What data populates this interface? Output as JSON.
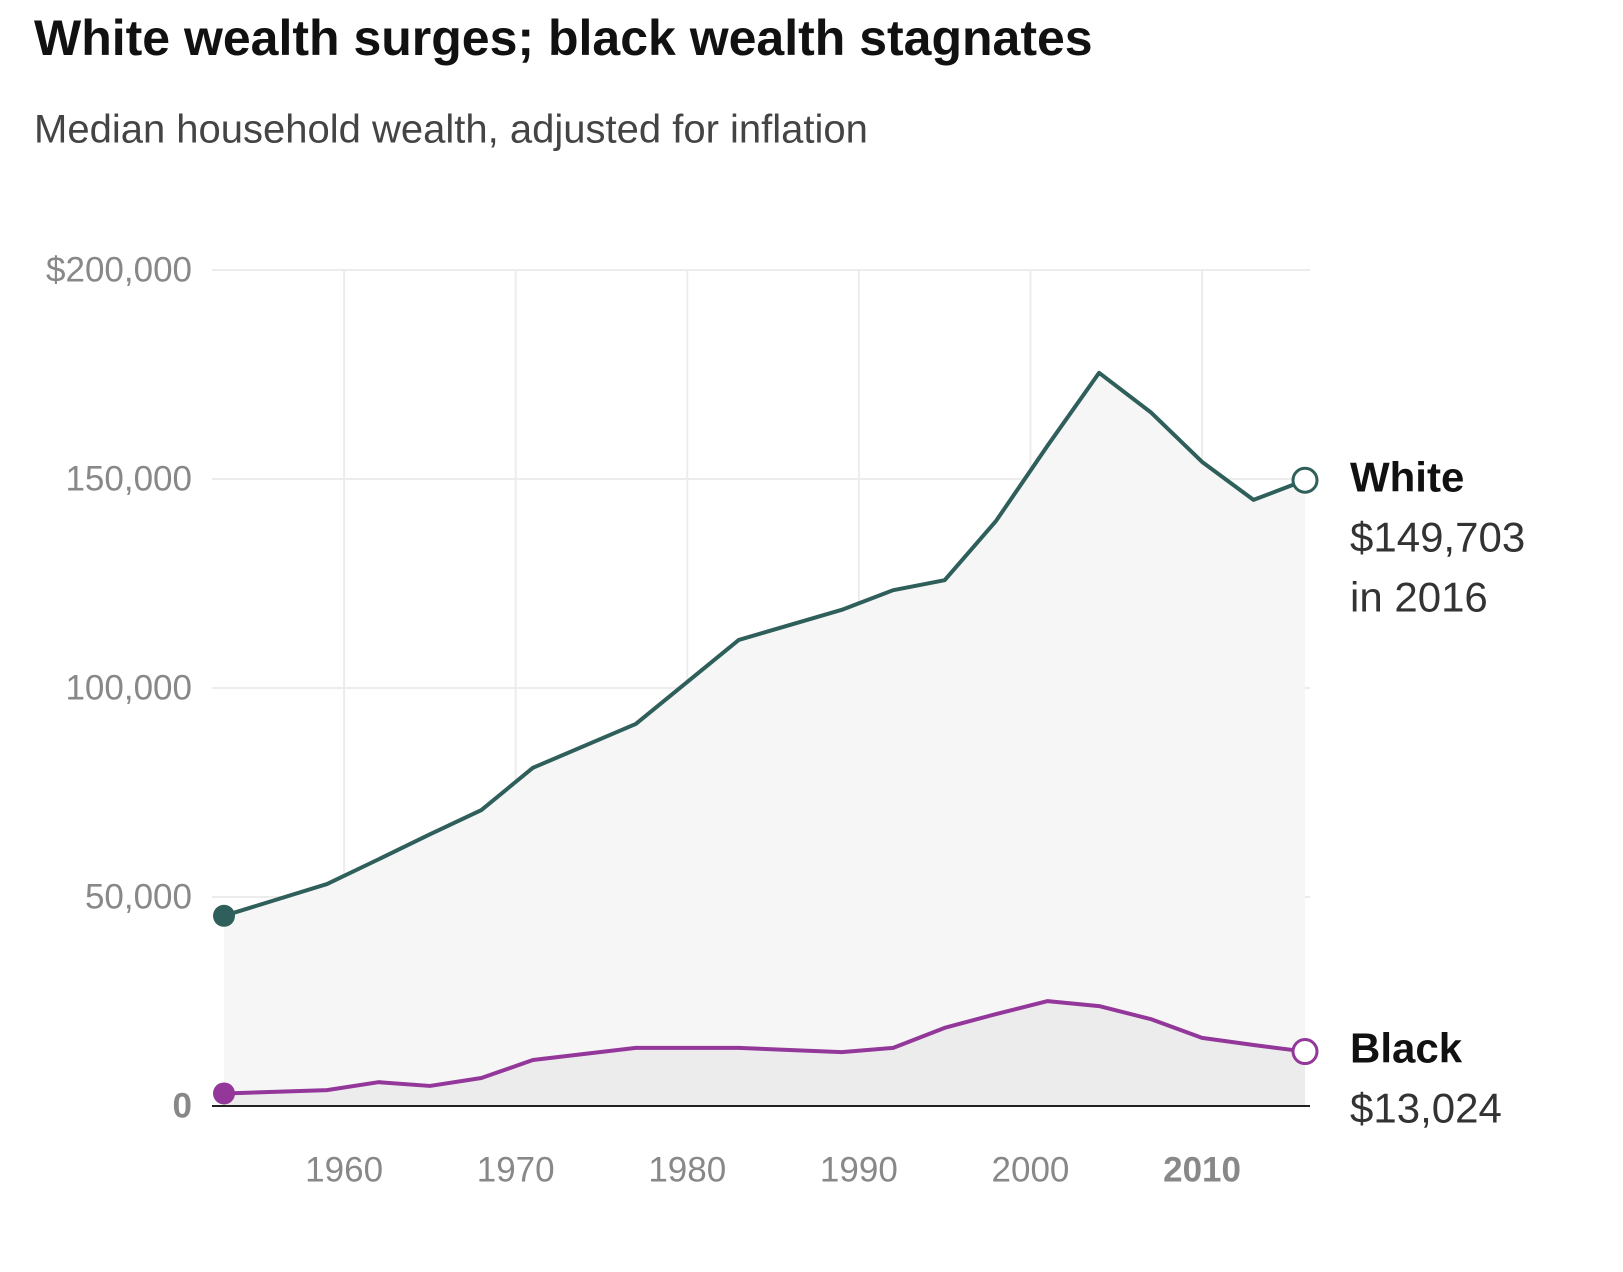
{
  "chart_data": {
    "type": "line",
    "title": "White wealth surges; black wealth stagnates",
    "subtitle": "Median household wealth, adjusted for inflation",
    "x": [
      1953,
      1959,
      1962,
      1965,
      1968,
      1971,
      1977,
      1983,
      1989,
      1992,
      1995,
      1998,
      2001,
      2004,
      2007,
      2010,
      2013,
      2016
    ],
    "series": [
      {
        "name": "White",
        "color": "#2f5f5a",
        "values": [
          45500,
          53100,
          59000,
          65000,
          70800,
          80900,
          91400,
          111500,
          118700,
          123400,
          125800,
          140000,
          158000,
          175400,
          166000,
          154100,
          145000,
          149703
        ],
        "end_label": [
          "$149,703",
          "in 2016"
        ]
      },
      {
        "name": "Black",
        "color": "#93379a",
        "values": [
          3000,
          3800,
          5700,
          4800,
          6700,
          11000,
          13900,
          13900,
          12900,
          13900,
          18700,
          22000,
          25100,
          23900,
          20800,
          16300,
          14600,
          13024
        ],
        "end_label": [
          "$13,024"
        ]
      }
    ],
    "xlim": [
      1953,
      2016
    ],
    "xticks": [
      1960,
      1970,
      1980,
      1990,
      2000,
      2010
    ],
    "ylim": [
      0,
      200000
    ],
    "yticks": [
      0,
      {
        "value": 50000,
        "label": "50,000"
      },
      {
        "value": 100000,
        "label": "100,000"
      },
      {
        "value": 150000,
        "label": "150,000"
      },
      {
        "value": 200000,
        "label": "$200,000"
      }
    ],
    "grid": true
  }
}
